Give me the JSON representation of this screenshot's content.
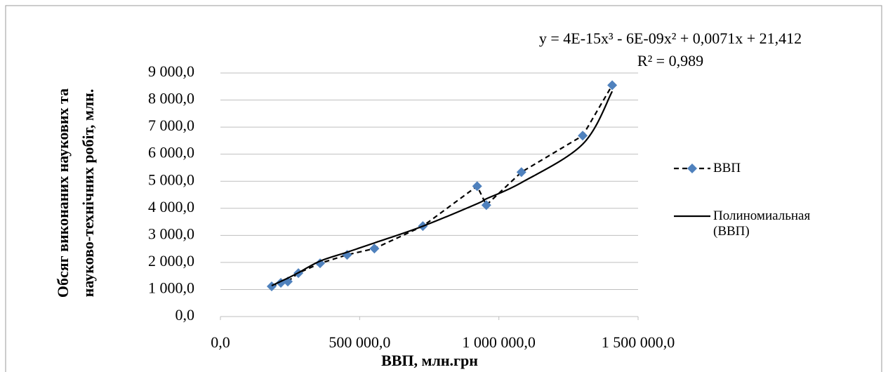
{
  "chart_data": {
    "type": "line",
    "annotations": [
      "y = 4E-15x³ - 6E-09x² + 0,0071x + 21,412",
      "R² = 0,989"
    ],
    "x_label": "ВВП, млн.грн",
    "y_label": [
      "Обсяг виконаних наукових та",
      "науково-технічних  робіт, млн."
    ],
    "x": [
      184000,
      217000,
      242000,
      280000,
      358000,
      455000,
      553000,
      727000,
      922000,
      955000,
      1081000,
      1301000,
      1407000
    ],
    "series": [
      {
        "name": "ВВП",
        "color": "#4f81bd",
        "values": [
          1114,
          1244,
          1295,
          1606,
          1969,
          2280,
          2513,
          3342,
          4819,
          4119,
          5337,
          6684,
          8549
        ]
      },
      {
        "name": "Полиномиальная (ВВП)",
        "color": "#000000",
        "values": [
          1140,
          1300,
          1420,
          1620,
          2050,
          2380,
          2720,
          3340,
          4170,
          4350,
          4950,
          6370,
          8320
        ]
      }
    ],
    "xlim": [
      0,
      1500000
    ],
    "xticks": [
      {
        "value": 0,
        "label": "0,0"
      },
      {
        "value": 500000,
        "label": "500 000,0"
      },
      {
        "value": 1000000,
        "label": "1 000 000,0"
      },
      {
        "value": 1500000,
        "label": "1 500 000,0"
      }
    ],
    "ylim": [
      0,
      9000
    ],
    "yticks": [
      {
        "value": 0,
        "label": "0,0"
      },
      {
        "value": 1000,
        "label": "1 000,0"
      },
      {
        "value": 2000,
        "label": "2 000,0"
      },
      {
        "value": 3000,
        "label": "3 000,0"
      },
      {
        "value": 4000,
        "label": "4 000,0"
      },
      {
        "value": 5000,
        "label": "5 000,0"
      },
      {
        "value": 6000,
        "label": "6 000,0"
      },
      {
        "value": 7000,
        "label": "7 000,0"
      },
      {
        "value": 8000,
        "label": "8 000,0"
      },
      {
        "value": 9000,
        "label": "9 000,0"
      }
    ],
    "grid": true
  }
}
